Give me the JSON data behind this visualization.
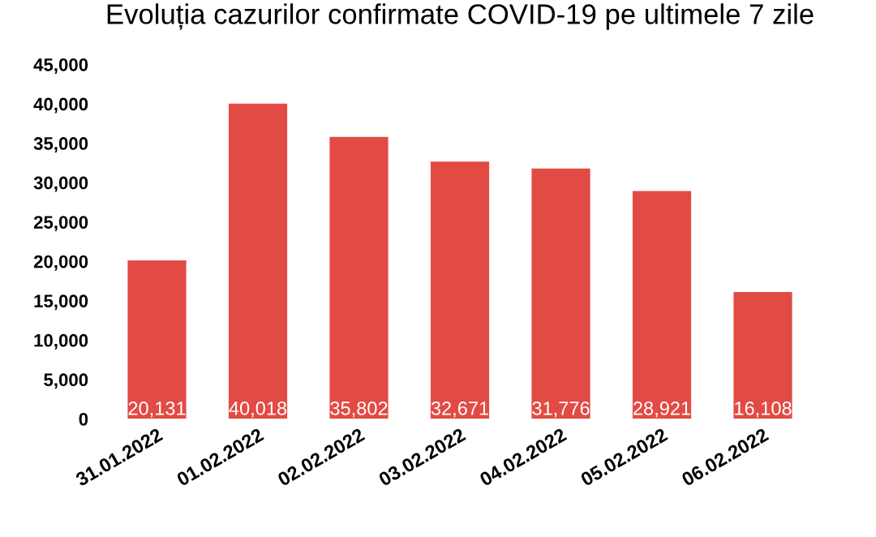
{
  "chart_data": {
    "type": "bar",
    "title": "Evoluția cazurilor confirmate COVID-19 pe ultimele 7 zile",
    "categories": [
      "31.01.2022",
      "01.02.2022",
      "02.02.2022",
      "03.02.2022",
      "04.02.2022",
      "05.02.2022",
      "06.02.2022"
    ],
    "values": [
      20131,
      40018,
      35802,
      32671,
      31776,
      28921,
      16108
    ],
    "value_labels": [
      "20,131",
      "40,018",
      "35,802",
      "32,671",
      "31,776",
      "28,921",
      "16,108"
    ],
    "color": "#e24b44",
    "ylim": [
      0,
      45000
    ],
    "yticks": [
      0,
      {
        "value": 5000,
        "label": "5,000"
      },
      {
        "value": 10000,
        "label": "10,000"
      },
      {
        "value": 15000,
        "label": "15,000"
      },
      {
        "value": 20000,
        "label": "20,000"
      },
      {
        "value": 25000,
        "label": "25,000"
      },
      {
        "value": 30000,
        "label": "30,000"
      },
      {
        "value": 35000,
        "label": "35,000"
      },
      {
        "value": 40000,
        "label": "40,000"
      },
      {
        "value": 45000,
        "label": "45,000"
      }
    ],
    "grid": false
  }
}
